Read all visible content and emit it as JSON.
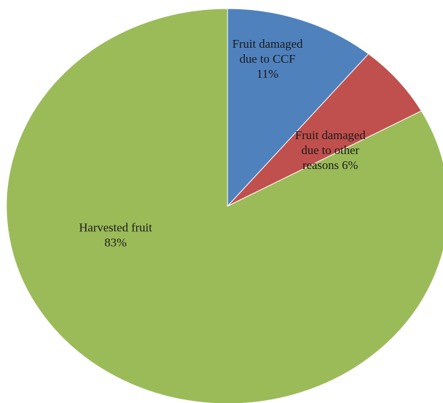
{
  "chart_data": {
    "type": "pie",
    "slices": [
      {
        "label_lines": [
          "Fruit damaged",
          "due to CCF",
          "11%"
        ],
        "category": "Fruit damaged due to CCF",
        "value": 11,
        "color": "#4F81BD"
      },
      {
        "label_lines": [
          "Fruit damaged",
          "due to other",
          "reasons 6%"
        ],
        "category": "Fruit damaged due to other reasons",
        "value": 6,
        "color": "#C0504D"
      },
      {
        "label_lines": [
          "Harvested fruit",
          "83%"
        ],
        "category": "Harvested fruit",
        "value": 83,
        "color": "#9BBB59"
      }
    ],
    "start": "12 o'clock",
    "direction": "clockwise",
    "legend": "none"
  }
}
